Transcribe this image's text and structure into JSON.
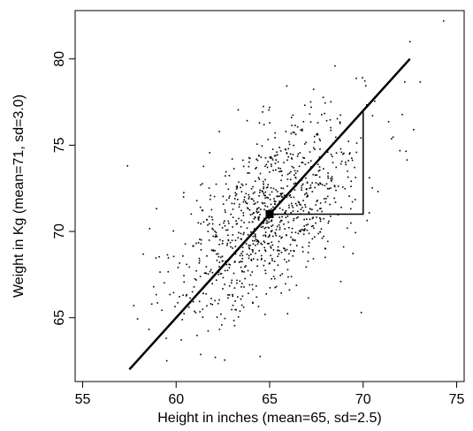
{
  "chart_data": {
    "type": "scatter",
    "title": "",
    "xlabel": "Height in inches (mean=65, sd=2.5)",
    "ylabel": "Weight in Kg (mean=71, sd=3.0)",
    "xlim": [
      54.6,
      75.4
    ],
    "ylim": [
      61.3,
      82.8
    ],
    "xticks": [
      55,
      60,
      65,
      70,
      75
    ],
    "yticks": [
      65,
      70,
      75,
      80
    ],
    "x_tick_labels": [
      "55",
      "60",
      "65",
      "70",
      "75"
    ],
    "y_tick_labels": [
      "65",
      "70",
      "75",
      "80"
    ],
    "grid": false,
    "legend": "none",
    "point_color": "#000000",
    "n_points": 1000,
    "x_mean": 65,
    "x_sd": 2.5,
    "y_mean": 71,
    "y_sd": 3.0,
    "correlation": 0.6,
    "mean_point": {
      "x": 65,
      "y": 71
    },
    "regression_line": {
      "x": [
        57.5,
        72.5
      ],
      "y": [
        62,
        80
      ]
    },
    "slope_triangle": {
      "x": [
        65,
        70,
        70
      ],
      "y": [
        71,
        71,
        77
      ]
    },
    "outliers": [
      {
        "x": 74.3,
        "y": 82.2
      },
      {
        "x": 72.5,
        "y": 81.0
      },
      {
        "x": 57.4,
        "y": 73.8
      },
      {
        "x": 72.7,
        "y": 75.9
      },
      {
        "x": 69.9,
        "y": 65.3
      },
      {
        "x": 68.8,
        "y": 67.1
      },
      {
        "x": 59.5,
        "y": 62.5
      }
    ]
  }
}
